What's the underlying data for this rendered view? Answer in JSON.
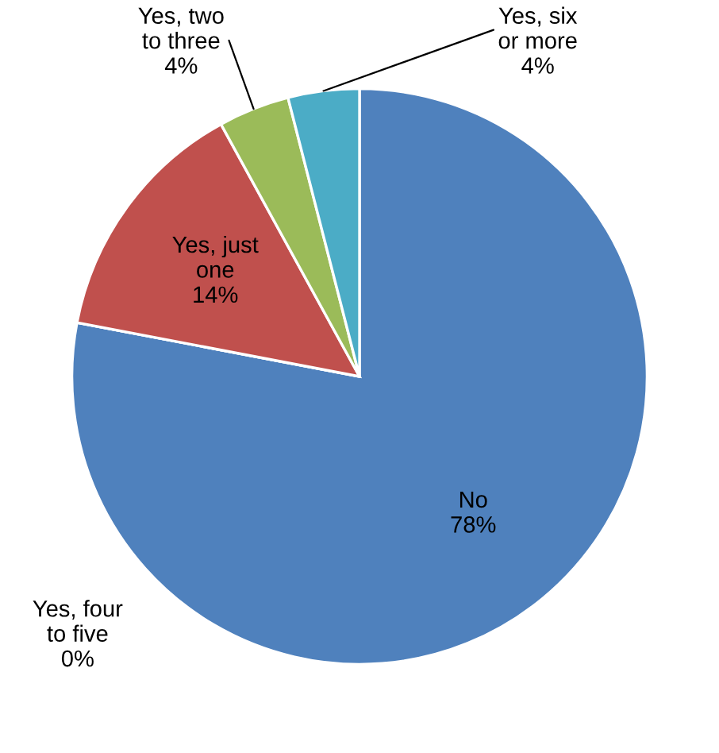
{
  "chart_data": {
    "type": "pie",
    "categories": [
      "No",
      "Yes, four to five",
      "Yes, just one",
      "Yes, two to three",
      "Yes, six or more"
    ],
    "values": [
      78,
      0,
      14,
      4,
      4
    ],
    "colors": [
      "#4f81bd",
      "#8064a2",
      "#c0504d",
      "#9bbb59",
      "#4bacc6"
    ],
    "value_labels": [
      "78%",
      "0%",
      "14%",
      "4%",
      "4%"
    ],
    "legend": false
  }
}
